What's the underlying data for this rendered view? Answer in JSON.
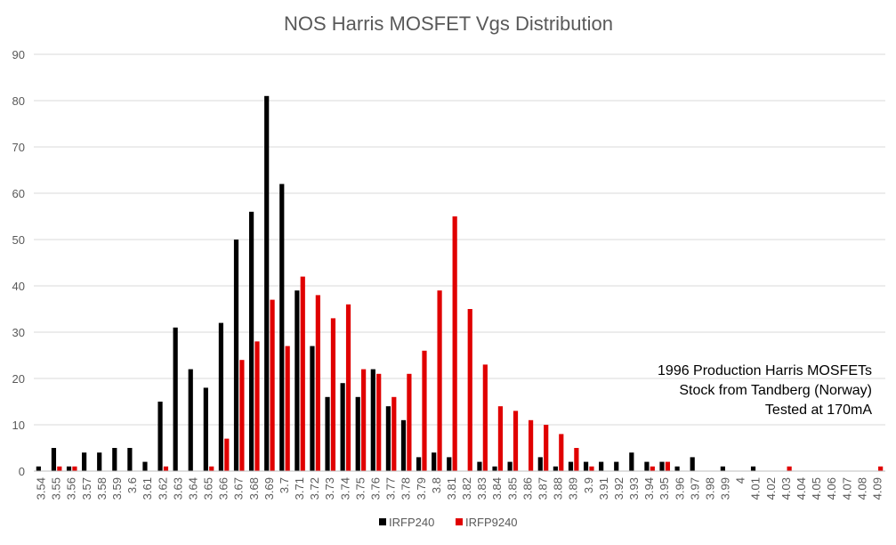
{
  "chart_data": {
    "type": "bar",
    "title": "NOS Harris MOSFET Vgs Distribution",
    "xlabel": "",
    "ylabel": "",
    "ylim": [
      0,
      90
    ],
    "yticks": [
      0,
      10,
      20,
      30,
      40,
      50,
      60,
      70,
      80,
      90
    ],
    "grid": true,
    "legend_position": "bottom",
    "categories": [
      "3.54",
      "3.55",
      "3.56",
      "3.57",
      "3.58",
      "3.59",
      "3.6",
      "3.61",
      "3.62",
      "3.63",
      "3.64",
      "3.65",
      "3.66",
      "3.67",
      "3.68",
      "3.69",
      "3.7",
      "3.71",
      "3.72",
      "3.73",
      "3.74",
      "3.75",
      "3.76",
      "3.77",
      "3.78",
      "3.79",
      "3.8",
      "3.81",
      "3.82",
      "3.83",
      "3.84",
      "3.85",
      "3.86",
      "3.87",
      "3.88",
      "3.89",
      "3.9",
      "3.91",
      "3.92",
      "3.93",
      "3.94",
      "3.95",
      "3.96",
      "3.97",
      "3.98",
      "3.99",
      "4",
      "4.01",
      "4.02",
      "4.03",
      "4.04",
      "4.05",
      "4.06",
      "4.07",
      "4.08",
      "4.09"
    ],
    "series": [
      {
        "name": "IRFP240",
        "color": "#000000",
        "values": [
          1,
          5,
          1,
          4,
          4,
          5,
          5,
          2,
          15,
          31,
          22,
          18,
          32,
          50,
          56,
          81,
          62,
          39,
          27,
          16,
          19,
          16,
          22,
          14,
          11,
          3,
          4,
          3,
          0,
          2,
          1,
          2,
          0,
          3,
          1,
          2,
          2,
          2,
          2,
          4,
          2,
          2,
          1,
          3,
          0,
          1,
          0,
          1,
          0,
          0,
          0,
          0,
          0,
          0,
          0,
          0
        ]
      },
      {
        "name": "IRFP9240",
        "color": "#e00000",
        "values": [
          0,
          1,
          1,
          0,
          0,
          0,
          0,
          0,
          1,
          0,
          0,
          1,
          7,
          24,
          28,
          37,
          27,
          42,
          38,
          33,
          36,
          22,
          21,
          16,
          21,
          26,
          39,
          55,
          35,
          23,
          14,
          13,
          11,
          10,
          8,
          5,
          1,
          0,
          0,
          0,
          1,
          2,
          0,
          0,
          0,
          0,
          0,
          0,
          0,
          1,
          0,
          0,
          0,
          0,
          0,
          1
        ]
      }
    ],
    "annotations": [
      "1996 Production Harris MOSFETs",
      "Stock from Tandberg (Norway)",
      "Tested at 170mA"
    ],
    "colors": {
      "grid": "#d9d9d9",
      "axis": "#bfbfbf",
      "tick_text": "#595959",
      "title_text": "#595959",
      "annotation_text": "#000000"
    }
  }
}
